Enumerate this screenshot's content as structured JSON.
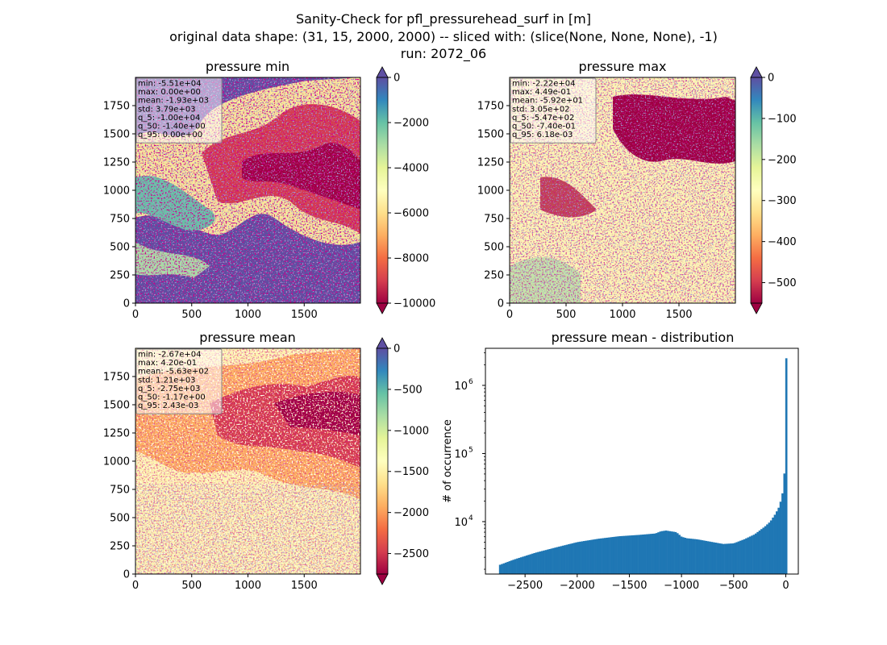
{
  "figure": {
    "title_lines": [
      "Sanity-Check for pfl_pressurehead_surf in [m]",
      "original data shape: (31, 15, 2000, 2000) -- sliced with: (slice(None, None, None), -1)",
      "run: 2072_06"
    ]
  },
  "chart_data": [
    {
      "type": "heatmap",
      "title": "pressure min",
      "colormap": "Spectral",
      "xlim": [
        0,
        2000
      ],
      "ylim": [
        0,
        2000
      ],
      "xticks": [
        0,
        500,
        1000,
        1500
      ],
      "yticks": [
        0,
        250,
        500,
        750,
        1000,
        1250,
        1500,
        1750
      ],
      "colorbar": {
        "min": -10000,
        "max": 0,
        "extend": [
          "min",
          "max"
        ],
        "ticks": [
          0,
          -2000,
          -4000,
          -6000,
          -8000,
          -10000
        ]
      },
      "stats": [
        "min: -5.51e+04",
        "max: 0.00e+00",
        "mean: -1.93e+03",
        "std: 3.79e+03",
        "q_5: -1.00e+04",
        "q_50: -1.40e+00",
        "q_95: 0.00e+00"
      ]
    },
    {
      "type": "heatmap",
      "title": "pressure max",
      "colormap": "Spectral",
      "xlim": [
        0,
        2000
      ],
      "ylim": [
        0,
        2000
      ],
      "xticks": [
        0,
        500,
        1000,
        1500
      ],
      "yticks": [
        0,
        250,
        500,
        750,
        1000,
        1250,
        1500,
        1750
      ],
      "colorbar": {
        "min": -550,
        "max": 0,
        "extend": [
          "min",
          "max"
        ],
        "ticks": [
          0,
          -100,
          -200,
          -300,
          -400,
          -500
        ]
      },
      "stats": [
        "min: -2.22e+04",
        "max: 4.49e-01",
        "mean: -5.92e+01",
        "std: 3.05e+02",
        "q_5: -5.47e+02",
        "q_50: -7.40e-01",
        "q_95: 6.18e-03"
      ]
    },
    {
      "type": "heatmap",
      "title": "pressure mean",
      "colormap": "Spectral",
      "xlim": [
        0,
        2000
      ],
      "ylim": [
        0,
        2000
      ],
      "xticks": [
        0,
        500,
        1000,
        1500
      ],
      "yticks": [
        0,
        250,
        500,
        750,
        1000,
        1250,
        1500,
        1750
      ],
      "colorbar": {
        "min": -2750,
        "max": 0,
        "extend": [
          "min",
          "max"
        ],
        "ticks": [
          0,
          -500,
          -1000,
          -1500,
          -2000,
          -2500
        ]
      },
      "stats": [
        "min: -2.67e+04",
        "max: 4.20e-01",
        "mean: -5.63e+02",
        "std: 1.21e+03",
        "q_5: -2.75e+03",
        "q_50: -1.17e+00",
        "q_95: 2.43e-03"
      ]
    },
    {
      "type": "bar",
      "title": "pressure mean - distribution",
      "ylabel": "# of occurrence",
      "xlabel": "",
      "yscale": "log",
      "xlim": [
        -2880,
        120
      ],
      "ylim": [
        1700,
        3500000
      ],
      "xticks": [
        -2500,
        -2000,
        -1500,
        -1000,
        -500,
        0
      ],
      "yticks": [
        10000,
        100000,
        1000000
      ],
      "color": "#1f77b4",
      "bin_left": -2750,
      "bin_width": 18.3,
      "profile_x": [
        -2750,
        -2600,
        -2400,
        -2200,
        -2000,
        -1800,
        -1600,
        -1400,
        -1250,
        -1200,
        -1150,
        -1050,
        -1000,
        -950,
        -850,
        -700,
        -600,
        -500,
        -400,
        -300,
        -200,
        -150,
        -100,
        -60,
        -30,
        -10,
        0
      ],
      "profile_y": [
        2300,
        2800,
        3500,
        4200,
        5000,
        5600,
        6100,
        6400,
        6700,
        7200,
        7400,
        7000,
        6000,
        5700,
        5500,
        5000,
        4700,
        4800,
        5500,
        6500,
        8500,
        10000,
        13000,
        17000,
        27000,
        60000,
        2500000
      ]
    }
  ]
}
